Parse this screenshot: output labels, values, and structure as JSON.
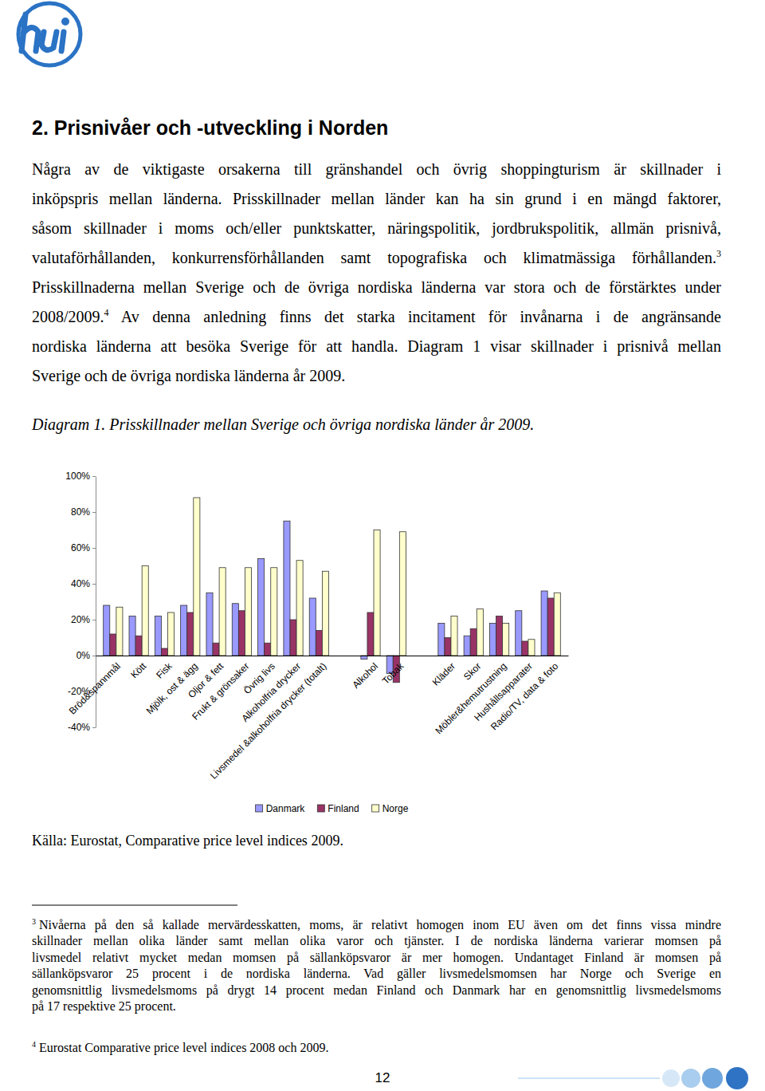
{
  "header": {
    "title": "2. Prisnivåer och -utveckling i Norden"
  },
  "paragraph": [
    [
      {
        "text": "Några av de viktigaste orsakerna till gränshandel och övrig shoppingturism är skillnader i"
      }
    ],
    [
      {
        "text": "inköpspris mellan länderna. Prisskillnader mellan länder kan ha sin grund i en mängd faktorer,"
      }
    ],
    [
      {
        "text": "såsom skillnader i moms och/eller punktskatter, näringspolitik, jordbrukspolitik, allmän prisnivå,"
      }
    ],
    [
      {
        "text": "valutaförhållanden, konkurrensförhållanden samt topografiska och klimatmässiga förhållanden."
      },
      {
        "sup": "3"
      }
    ],
    [
      {
        "text": "Prisskillnaderna mellan Sverige och de övriga nordiska länderna var stora och de förstärktes under"
      }
    ],
    [
      {
        "text": "2008/2009."
      },
      {
        "sup": "4"
      },
      {
        "text": " Av denna anledning finns det starka incitament för invånarna i de angränsande"
      }
    ],
    [
      {
        "text": "nordiska länderna att besöka Sverige för att handla. Diagram 1 visar skillnader i prisnivå mellan"
      }
    ],
    [
      {
        "text": "Sverige och de övriga nordiska länderna år 2009."
      }
    ]
  ],
  "chart_data": {
    "type": "bar",
    "title": "Diagram 1. Prisskillnader mellan Sverige och övriga nordiska länder år 2009.",
    "categories": [
      "Bröd&spannmål",
      "Kött",
      "Fisk",
      "Mjölk, ost & ägg",
      "Oljor & fett",
      "Frukt & grönsaker",
      "Övrig livs",
      "Alkoholfria drycker",
      "Livsmedel &alkoholfria drycker (totalt)",
      null,
      "Alkohol",
      "Tobak",
      null,
      "Kläder",
      "Skor",
      "Möbler&hemutrustning",
      "Hushållsapparater",
      "Radio/TV, data & foto"
    ],
    "series": [
      {
        "name": "Danmark",
        "color": "#9999ff",
        "values": [
          28,
          22,
          22,
          28,
          35,
          29,
          54,
          75,
          32,
          null,
          -2,
          -10,
          null,
          18,
          11,
          18,
          25,
          36
        ]
      },
      {
        "name": "Finland",
        "color": "#993366",
        "values": [
          12,
          11,
          4,
          24,
          7,
          25,
          7,
          20,
          14,
          null,
          24,
          -15,
          null,
          10,
          15,
          22,
          8,
          32
        ]
      },
      {
        "name": "Norge",
        "color": "#ffffcc",
        "values": [
          27,
          50,
          24,
          88,
          49,
          49,
          49,
          53,
          47,
          null,
          70,
          69,
          null,
          22,
          26,
          18,
          9,
          35
        ]
      }
    ],
    "ylim": [
      -40,
      100
    ],
    "yticks": [
      {
        "value": -40,
        "label": "-40%"
      },
      {
        "value": -20,
        "label": "-20%"
      },
      {
        "value": 0,
        "label": "0%"
      },
      {
        "value": 20,
        "label": "20%"
      },
      {
        "value": 40,
        "label": "40%"
      },
      {
        "value": 60,
        "label": "60%"
      },
      {
        "value": 80,
        "label": "80%"
      },
      {
        "value": 100,
        "label": "100%"
      }
    ],
    "grid": false,
    "legend": "bottom"
  },
  "source": "Källa: Eurostat, Comparative price level indices 2009.",
  "footnotes": [
    {
      "mark": "3",
      "lines": [
        "Nivåerna på den så kallade mervärdesskatten, moms, är relativt homogen inom EU även om det finns vissa mindre",
        "skillnader mellan olika länder samt mellan olika varor och tjänster. I de nordiska länderna varierar momsen på",
        "livsmedel relativt mycket medan momsen på sällanköpsvaror är mer homogen. Undantaget Finland är momsen på",
        "sällanköpsvaror 25 procent i de nordiska länderna. Vad gäller livsmedelsmomsen har Norge och Sverige en",
        "genomsnittlig livsmedelsmoms på drygt 14 procent medan Finland och Danmark har en genomsnittlig livsmedelsmoms",
        "på 17 respektive 25 procent."
      ]
    },
    {
      "mark": "4",
      "lines": [
        "Eurostat Comparative price level indices 2008 och 2009."
      ]
    }
  ],
  "page_number": "12"
}
